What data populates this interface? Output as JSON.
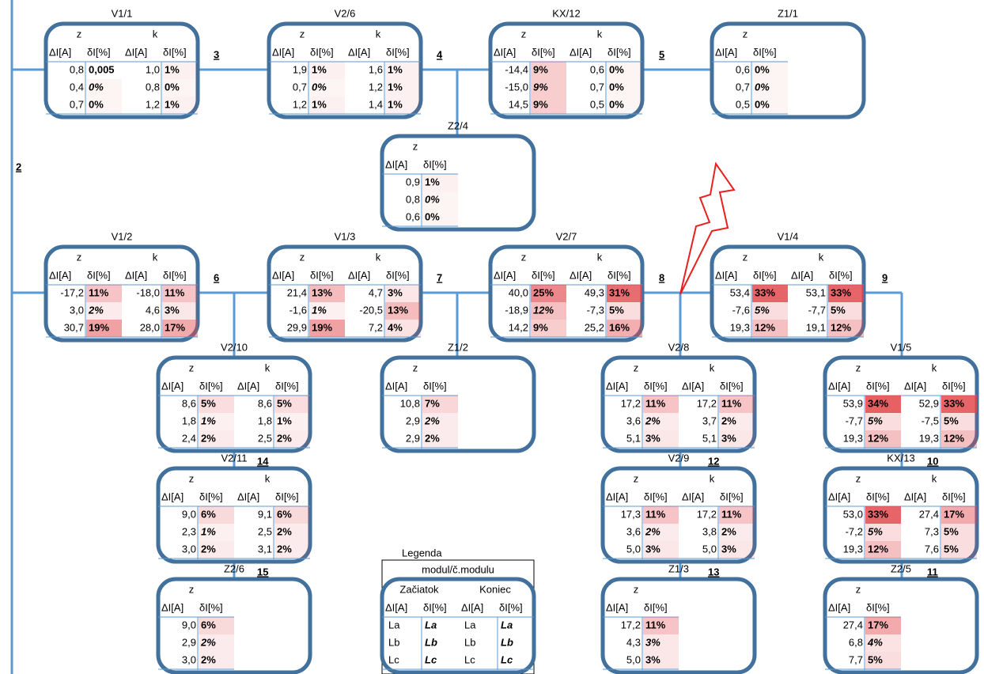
{
  "columns": {
    "z": "z",
    "k": "k",
    "dI": "ΔI[A]",
    "dPct": "δI[%]"
  },
  "line_numbers": [
    "2",
    "3",
    "4",
    "5",
    "6",
    "7",
    "8",
    "9",
    "14",
    "12",
    "10",
    "15",
    "13",
    "11"
  ],
  "modules": [
    {
      "label": "V1/1",
      "z": [
        [
          "0,8",
          "0,005"
        ],
        [
          "0,4",
          "0%"
        ],
        [
          "0,7",
          "0%"
        ]
      ],
      "k": [
        [
          "1,0",
          "1%"
        ],
        [
          "0,8",
          "0%"
        ],
        [
          "1,2",
          "1%"
        ]
      ]
    },
    {
      "label": "V2/6",
      "z": [
        [
          "1,9",
          "1%"
        ],
        [
          "0,7",
          "0%"
        ],
        [
          "1,2",
          "1%"
        ]
      ],
      "k": [
        [
          "1,6",
          "1%"
        ],
        [
          "1,2",
          "1%"
        ],
        [
          "1,4",
          "1%"
        ]
      ]
    },
    {
      "label": "KX/12",
      "z": [
        [
          "-14,4",
          "9%"
        ],
        [
          "-15,0",
          "9%"
        ],
        [
          "14,5",
          "9%"
        ]
      ],
      "k": [
        [
          "0,6",
          "0%"
        ],
        [
          "0,7",
          "0%"
        ],
        [
          "0,5",
          "0%"
        ]
      ]
    },
    {
      "label": "Z1/1",
      "z": [
        [
          "0,6",
          "0%"
        ],
        [
          "0,7",
          "0%"
        ],
        [
          "0,5",
          "0%"
        ]
      ]
    },
    {
      "label": "Z2/4",
      "z": [
        [
          "0,9",
          "1%"
        ],
        [
          "0,8",
          "0%"
        ],
        [
          "0,6",
          "0%"
        ]
      ]
    },
    {
      "label": "V1/2",
      "z": [
        [
          "-17,2",
          "11%"
        ],
        [
          "3,0",
          "2%"
        ],
        [
          "30,7",
          "19%"
        ]
      ],
      "k": [
        [
          "-18,0",
          "11%"
        ],
        [
          "4,6",
          "3%"
        ],
        [
          "28,0",
          "17%"
        ]
      ]
    },
    {
      "label": "V1/3",
      "z": [
        [
          "21,4",
          "13%"
        ],
        [
          "-1,6",
          "1%"
        ],
        [
          "29,9",
          "19%"
        ]
      ],
      "k": [
        [
          "4,7",
          "3%"
        ],
        [
          "-20,5",
          "13%"
        ],
        [
          "7,2",
          "4%"
        ]
      ]
    },
    {
      "label": "V2/7",
      "z": [
        [
          "40,0",
          "25%"
        ],
        [
          "-18,9",
          "12%"
        ],
        [
          "14,2",
          "9%"
        ]
      ],
      "k": [
        [
          "49,3",
          "31%"
        ],
        [
          "-7,3",
          "5%"
        ],
        [
          "25,2",
          "16%"
        ]
      ]
    },
    {
      "label": "V1/4",
      "z": [
        [
          "53,4",
          "33%"
        ],
        [
          "-7,6",
          "5%"
        ],
        [
          "19,3",
          "12%"
        ]
      ],
      "k": [
        [
          "53,1",
          "33%"
        ],
        [
          "-7,7",
          "5%"
        ],
        [
          "19,1",
          "12%"
        ]
      ]
    },
    {
      "label": "V2/10",
      "z": [
        [
          "8,6",
          "5%"
        ],
        [
          "1,8",
          "1%"
        ],
        [
          "2,4",
          "2%"
        ]
      ],
      "k": [
        [
          "8,6",
          "5%"
        ],
        [
          "1,8",
          "1%"
        ],
        [
          "2,5",
          "2%"
        ]
      ]
    },
    {
      "label": "Z1/2",
      "z": [
        [
          "10,8",
          "7%"
        ],
        [
          "2,9",
          "2%"
        ],
        [
          "2,9",
          "2%"
        ]
      ]
    },
    {
      "label": "V2/8",
      "z": [
        [
          "17,2",
          "11%"
        ],
        [
          "3,6",
          "2%"
        ],
        [
          "5,1",
          "3%"
        ]
      ],
      "k": [
        [
          "17,2",
          "11%"
        ],
        [
          "3,7",
          "2%"
        ],
        [
          "5,1",
          "3%"
        ]
      ]
    },
    {
      "label": "V1/5",
      "z": [
        [
          "53,9",
          "34%"
        ],
        [
          "-7,7",
          "5%"
        ],
        [
          "19,3",
          "12%"
        ]
      ],
      "k": [
        [
          "52,9",
          "33%"
        ],
        [
          "-7,5",
          "5%"
        ],
        [
          "19,3",
          "12%"
        ]
      ]
    },
    {
      "label": "V2/11",
      "z": [
        [
          "9,0",
          "6%"
        ],
        [
          "2,3",
          "1%"
        ],
        [
          "3,0",
          "2%"
        ]
      ],
      "k": [
        [
          "9,1",
          "6%"
        ],
        [
          "2,5",
          "2%"
        ],
        [
          "3,1",
          "2%"
        ]
      ]
    },
    {
      "label": "V2/9",
      "z": [
        [
          "17,3",
          "11%"
        ],
        [
          "3,6",
          "2%"
        ],
        [
          "5,0",
          "3%"
        ]
      ],
      "k": [
        [
          "17,2",
          "11%"
        ],
        [
          "3,8",
          "2%"
        ],
        [
          "5,0",
          "3%"
        ]
      ]
    },
    {
      "label": "KX/13",
      "z": [
        [
          "53,0",
          "33%"
        ],
        [
          "-7,2",
          "5%"
        ],
        [
          "19,3",
          "12%"
        ]
      ],
      "k": [
        [
          "27,4",
          "17%"
        ],
        [
          "7,3",
          "5%"
        ],
        [
          "7,6",
          "5%"
        ]
      ]
    },
    {
      "label": "Z2/6",
      "z": [
        [
          "9,0",
          "6%"
        ],
        [
          "2,9",
          "2%"
        ],
        [
          "3,0",
          "2%"
        ]
      ]
    },
    {
      "label": "Z1/3",
      "z": [
        [
          "17,2",
          "11%"
        ],
        [
          "4,3",
          "3%"
        ],
        [
          "5,0",
          "3%"
        ]
      ]
    },
    {
      "label": "Z2/5",
      "z": [
        [
          "27,4",
          "17%"
        ],
        [
          "6,8",
          "4%"
        ],
        [
          "7,7",
          "5%"
        ]
      ]
    }
  ],
  "legend": {
    "title": "Legenda",
    "subtitle": "modul/č.modulu",
    "start": "Začiatok",
    "end": "Koniec",
    "rows": [
      [
        "La",
        "La",
        "La",
        "La"
      ],
      [
        "Lb",
        "Lb",
        "Lb",
        "Lb"
      ],
      [
        "Lc",
        "Lc",
        "Lc",
        "Lc"
      ]
    ]
  }
}
